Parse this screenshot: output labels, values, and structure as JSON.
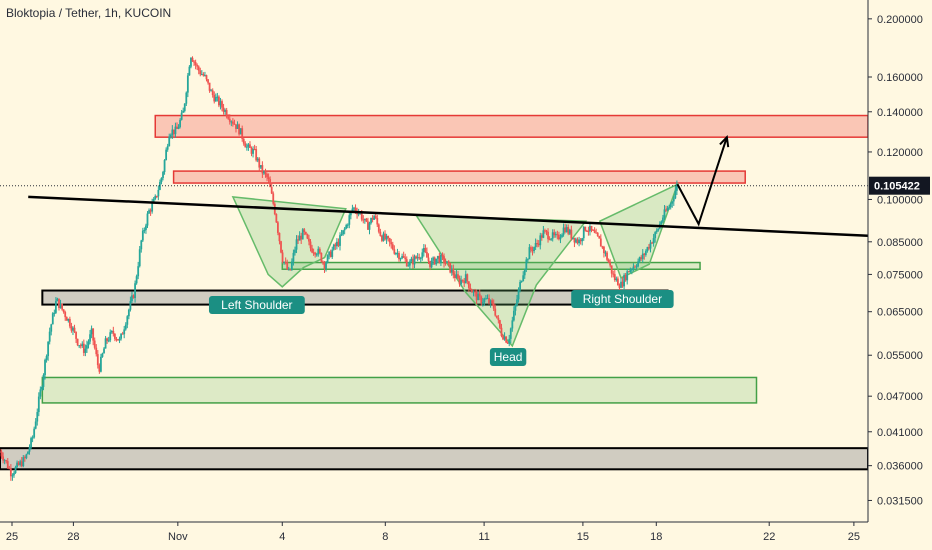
{
  "chart_data": {
    "type": "candlestick",
    "title": "Bloktopia / Tether, 1h, KUCOIN",
    "y_scale": "log",
    "ylim": [
      0.029,
      0.215
    ],
    "y_ticks": [
      "0.200000",
      "0.160000",
      "0.140000",
      "0.120000",
      "0.100000",
      "0.085000",
      "0.075000",
      "0.065000",
      "0.055000",
      "0.047000",
      "0.041000",
      "0.036000",
      "0.031500"
    ],
    "x_ticks": [
      "25",
      "28",
      "Nov",
      "4",
      "8",
      "11",
      "15",
      "18",
      "22",
      "25"
    ],
    "current_price": "0.105422",
    "grid": false,
    "colors": {
      "up": "#26a69a",
      "down": "#ef5350",
      "background": "#fff8e1",
      "resistance": "#e53935",
      "support": "#43a047",
      "neutral": "#000000",
      "pattern": "#26a69a"
    },
    "annotations": {
      "left_shoulder": "Left Shoulder",
      "head": "Head",
      "right_shoulder": "Right Shoulder"
    },
    "price_path": [
      [
        0,
        0.038
      ],
      [
        0.3,
        0.037
      ],
      [
        0.8,
        0.035
      ],
      [
        1.3,
        0.036
      ],
      [
        1.8,
        0.037
      ],
      [
        2.3,
        0.04
      ],
      [
        3,
        0.05
      ],
      [
        3.5,
        0.06
      ],
      [
        4,
        0.068
      ],
      [
        4.5,
        0.065
      ],
      [
        5,
        0.062
      ],
      [
        5.5,
        0.058
      ],
      [
        6,
        0.056
      ],
      [
        6.5,
        0.06
      ],
      [
        7,
        0.052
      ],
      [
        7.5,
        0.058
      ],
      [
        8,
        0.06
      ],
      [
        8.5,
        0.058
      ],
      [
        9,
        0.064
      ],
      [
        9.5,
        0.07
      ],
      [
        10,
        0.085
      ],
      [
        10.5,
        0.095
      ],
      [
        11,
        0.1
      ],
      [
        11.5,
        0.11
      ],
      [
        12,
        0.13
      ],
      [
        12.5,
        0.13
      ],
      [
        13,
        0.14
      ],
      [
        13.5,
        0.175
      ],
      [
        14,
        0.165
      ],
      [
        14.5,
        0.16
      ],
      [
        15,
        0.15
      ],
      [
        15.5,
        0.145
      ],
      [
        16,
        0.14
      ],
      [
        16.5,
        0.135
      ],
      [
        17,
        0.13
      ],
      [
        17.5,
        0.122
      ],
      [
        18,
        0.12
      ],
      [
        18.5,
        0.112
      ],
      [
        19,
        0.108
      ],
      [
        19.5,
        0.095
      ],
      [
        20,
        0.08
      ],
      [
        20.5,
        0.075
      ],
      [
        21,
        0.085
      ],
      [
        21.5,
        0.088
      ],
      [
        22,
        0.083
      ],
      [
        22.5,
        0.082
      ],
      [
        23,
        0.078
      ],
      [
        23.5,
        0.082
      ],
      [
        24,
        0.085
      ],
      [
        24.5,
        0.09
      ],
      [
        25,
        0.097
      ],
      [
        25.5,
        0.095
      ],
      [
        26,
        0.09
      ],
      [
        26.5,
        0.094
      ],
      [
        27,
        0.087
      ],
      [
        27.5,
        0.085
      ],
      [
        28,
        0.082
      ],
      [
        28.5,
        0.08
      ],
      [
        29,
        0.078
      ],
      [
        29.5,
        0.08
      ],
      [
        30,
        0.082
      ],
      [
        30.5,
        0.078
      ],
      [
        31,
        0.08
      ],
      [
        31.5,
        0.079
      ],
      [
        32,
        0.076
      ],
      [
        32.5,
        0.073
      ],
      [
        33,
        0.074
      ],
      [
        33.5,
        0.07
      ],
      [
        34,
        0.068
      ],
      [
        34.5,
        0.068
      ],
      [
        35,
        0.066
      ],
      [
        35.5,
        0.06
      ],
      [
        36,
        0.058
      ],
      [
        36.5,
        0.066
      ],
      [
        37,
        0.075
      ],
      [
        37.5,
        0.082
      ],
      [
        38,
        0.084
      ],
      [
        38.5,
        0.088
      ],
      [
        39,
        0.087
      ],
      [
        39.5,
        0.086
      ],
      [
        40,
        0.09
      ],
      [
        40.5,
        0.087
      ],
      [
        41,
        0.085
      ],
      [
        41.5,
        0.09
      ],
      [
        42,
        0.088
      ],
      [
        42.5,
        0.085
      ],
      [
        43,
        0.08
      ],
      [
        43.5,
        0.074
      ],
      [
        44,
        0.072
      ],
      [
        44.5,
        0.076
      ],
      [
        45,
        0.078
      ],
      [
        45.5,
        0.08
      ],
      [
        46,
        0.084
      ],
      [
        46.5,
        0.088
      ],
      [
        47,
        0.094
      ],
      [
        47.5,
        0.098
      ],
      [
        48,
        0.106
      ]
    ],
    "projection": [
      [
        48,
        0.106
      ],
      [
        49.5,
        0.091
      ],
      [
        51.5,
        0.127
      ]
    ],
    "neckline": [
      [
        2.0,
        0.101
      ],
      [
        61.5,
        0.087
      ]
    ],
    "zones": [
      {
        "kind": "resistance",
        "x": [
          11.0,
          61.5
        ],
        "y": [
          0.127,
          0.138
        ]
      },
      {
        "kind": "resistance",
        "x": [
          12.3,
          52.8
        ],
        "y": [
          0.1065,
          0.1115
        ]
      },
      {
        "kind": "support",
        "x": [
          20.0,
          49.6
        ],
        "y": [
          0.0765,
          0.0785
        ]
      },
      {
        "kind": "neutral",
        "x": [
          3.0,
          47.3
        ],
        "y": [
          0.0668,
          0.0705
        ]
      },
      {
        "kind": "support",
        "x": [
          3.0,
          53.6
        ],
        "y": [
          0.0458,
          0.0505
        ]
      },
      {
        "kind": "neutral",
        "x": [
          0,
          61.5
        ],
        "y": [
          0.0355,
          0.0385
        ]
      }
    ],
    "pattern_points": {
      "left_shoulder": [
        [
          16.5,
          0.101
        ],
        [
          19.0,
          0.075
        ],
        [
          20.0,
          0.0715
        ],
        [
          21.5,
          0.077
        ],
        [
          23.0,
          0.08
        ],
        [
          24.5,
          0.0965
        ]
      ],
      "head": [
        [
          29.5,
          0.094
        ],
        [
          33.0,
          0.07
        ],
        [
          36.3,
          0.057
        ],
        [
          38.0,
          0.072
        ],
        [
          39.5,
          0.08
        ],
        [
          41.5,
          0.092
        ]
      ],
      "right_shoulder": [
        [
          42.5,
          0.092
        ],
        [
          44.0,
          0.074
        ],
        [
          46.0,
          0.078
        ],
        [
          48.0,
          0.106
        ]
      ]
    },
    "x_tick_positions": [
      0,
      5.2,
      12.6,
      20.0,
      27.3,
      34.3,
      41.3,
      46.5,
      54.5,
      60.5
    ]
  }
}
